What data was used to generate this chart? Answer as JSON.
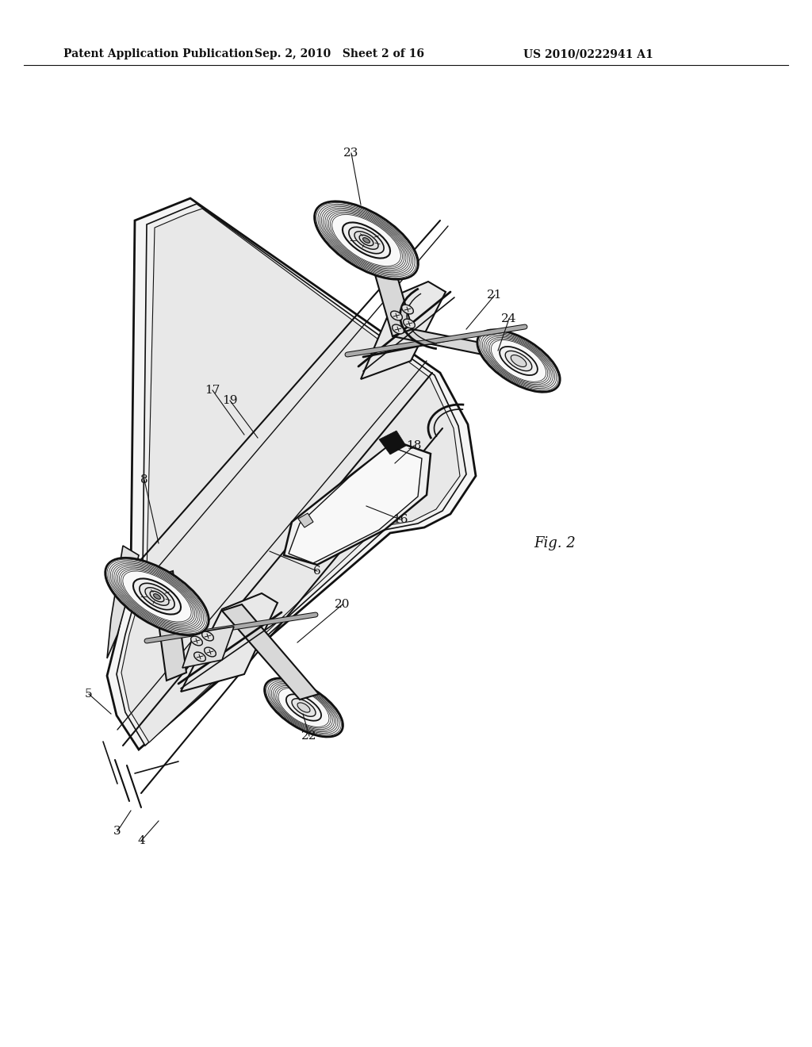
{
  "header_left": "Patent Application Publication",
  "header_mid": "Sep. 2, 2010   Sheet 2 of 16",
  "header_right": "US 2010/0222941 A1",
  "fig_label": "Fig. 2",
  "bg": "#ffffff",
  "lc": "#111111",
  "lc_light": "#666666"
}
